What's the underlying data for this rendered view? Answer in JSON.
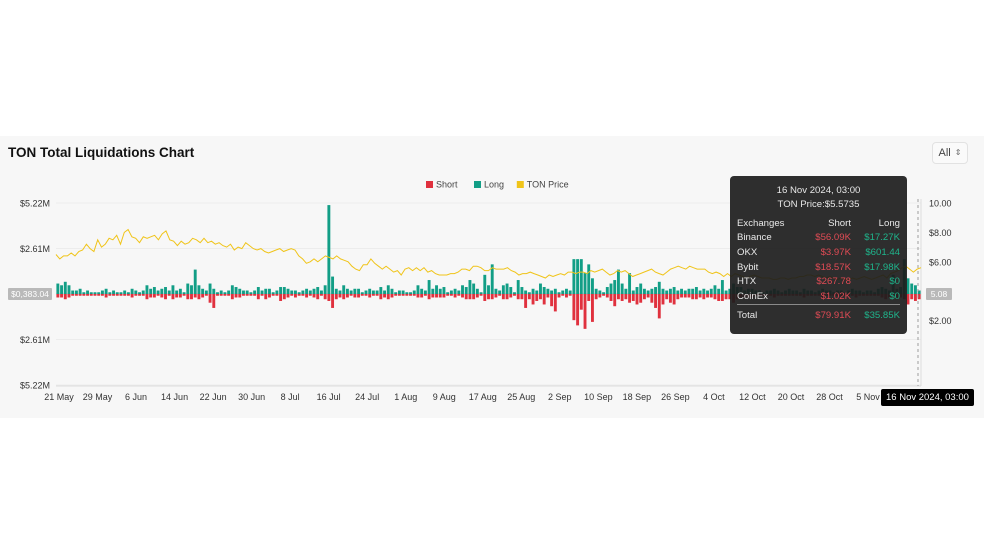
{
  "chart_title": "TON Total Liquidations Chart",
  "range_selector": {
    "value": "All"
  },
  "legend": [
    {
      "label": "Short",
      "color": "#e0313e"
    },
    {
      "label": "Long",
      "color": "#129e86"
    },
    {
      "label": "TON Price",
      "color": "#f0c419"
    }
  ],
  "chart_data": {
    "type": "bar",
    "title": "TON Total Liquidations Chart",
    "x_ticks": [
      "21 May",
      "29 May",
      "6 Jun",
      "14 Jun",
      "22 Jun",
      "30 Jun",
      "8 Jul",
      "16 Jul",
      "24 Jul",
      "1 Aug",
      "9 Aug",
      "17 Aug",
      "25 Aug",
      "2 Sep",
      "10 Sep",
      "18 Sep",
      "26 Sep",
      "4 Oct",
      "12 Oct",
      "20 Oct",
      "28 Oct",
      "5 Nov"
    ],
    "y_left_ticks": [
      "$5.22M",
      "$2.61M",
      "$0",
      "$2.61M",
      "$5.22M"
    ],
    "y_left_range": [
      -5.22,
      5.22
    ],
    "y_left_unit": "$M",
    "y_right_ticks": [
      "10.00",
      "$8.00",
      "$6.00",
      "$4.00",
      "$2.00"
    ],
    "y_right_range": [
      0,
      10
    ],
    "left_axis_marker": "$0,383.04",
    "right_axis_marker": "5.08",
    "series": [
      {
        "name": "Long",
        "color": "#129e86",
        "values": [
          0.6,
          0.5,
          0.7,
          0.5,
          0.2,
          0.2,
          0.3,
          0.1,
          0.2,
          0.1,
          0.1,
          0.1,
          0.2,
          0.3,
          0.1,
          0.2,
          0.1,
          0.1,
          0.2,
          0.1,
          0.3,
          0.2,
          0.1,
          0.2,
          0.5,
          0.3,
          0.4,
          0.2,
          0.3,
          0.4,
          0.2,
          0.5,
          0.2,
          0.3,
          0.1,
          0.6,
          0.5,
          1.4,
          0.5,
          0.3,
          0.2,
          0.6,
          0.3,
          0.1,
          0.2,
          0.1,
          0.2,
          0.5,
          0.4,
          0.3,
          0.2,
          0.2,
          0.1,
          0.2,
          0.4,
          0.2,
          0.3,
          0.3,
          0.1,
          0.2,
          0.4,
          0.4,
          0.3,
          0.2,
          0.2,
          0.1,
          0.2,
          0.3,
          0.2,
          0.3,
          0.4,
          0.2,
          0.5,
          5.1,
          1.0,
          0.3,
          0.2,
          0.5,
          0.3,
          0.2,
          0.3,
          0.3,
          0.1,
          0.2,
          0.3,
          0.2,
          0.2,
          0.4,
          0.2,
          0.5,
          0.3,
          0.1,
          0.2,
          0.2,
          0.1,
          0.1,
          0.2,
          0.5,
          0.3,
          0.2,
          0.8,
          0.3,
          0.5,
          0.3,
          0.4,
          0.1,
          0.2,
          0.3,
          0.2,
          0.5,
          0.4,
          0.8,
          0.6,
          0.3,
          0.1,
          1.1,
          0.5,
          1.7,
          0.3,
          0.2,
          0.5,
          0.6,
          0.4,
          0.1,
          0.8,
          0.4,
          0.2,
          0.1,
          0.3,
          0.2,
          0.6,
          0.4,
          0.3,
          0.2,
          0.3,
          0.1,
          0.2,
          0.3,
          0.2,
          2.0,
          2.0,
          2.0,
          1.2,
          1.7,
          0.9,
          0.3,
          0.2,
          0.1,
          0.4,
          0.6,
          0.8,
          1.4,
          0.6,
          0.3,
          1.2,
          0.2,
          0.4,
          0.6,
          0.3,
          0.2,
          0.3,
          0.4,
          0.7,
          0.3,
          0.2,
          0.3,
          0.4,
          0.2,
          0.3,
          0.2,
          0.3,
          0.3,
          0.4,
          0.2,
          0.3,
          0.2,
          0.3,
          0.5,
          0.3,
          0.8,
          0.2,
          0.3,
          0.6,
          0.4,
          0.4,
          0.2,
          0.3,
          0.3,
          0.2,
          0.2,
          0.1,
          0.2,
          0.2,
          0.3,
          0.2,
          0.1,
          0.2,
          0.3,
          0.2,
          0.2,
          0.1,
          0.3,
          0.2,
          0.2,
          0.1,
          0.2,
          0.3,
          0.2,
          0.2,
          0.1,
          0.2,
          0.2,
          0.1,
          0.2,
          0.3,
          0.2,
          0.2,
          0.1,
          0.2,
          0.2,
          0.1,
          0.3,
          0.4,
          0.3,
          0.2,
          1.1,
          0.3,
          0.4,
          2.0,
          0.9,
          0.6,
          0.5,
          0.2
        ]
      },
      {
        "name": "Short",
        "color": "#e0313e",
        "values": [
          0.2,
          0.2,
          0.3,
          0.2,
          0.1,
          0.1,
          0.1,
          0.1,
          0.1,
          0.1,
          0.1,
          0.1,
          0.1,
          0.2,
          0.1,
          0.1,
          0.1,
          0.1,
          0.1,
          0.1,
          0.2,
          0.1,
          0.1,
          0.1,
          0.3,
          0.2,
          0.2,
          0.1,
          0.2,
          0.3,
          0.1,
          0.3,
          0.2,
          0.2,
          0.1,
          0.3,
          0.3,
          0.2,
          0.3,
          0.2,
          0.1,
          0.5,
          0.8,
          0.1,
          0.1,
          0.1,
          0.1,
          0.3,
          0.2,
          0.2,
          0.1,
          0.1,
          0.1,
          0.1,
          0.3,
          0.1,
          0.3,
          0.2,
          0.1,
          0.1,
          0.4,
          0.3,
          0.2,
          0.1,
          0.2,
          0.1,
          0.1,
          0.2,
          0.1,
          0.2,
          0.3,
          0.1,
          0.3,
          0.4,
          0.8,
          0.3,
          0.2,
          0.3,
          0.2,
          0.1,
          0.2,
          0.2,
          0.1,
          0.1,
          0.2,
          0.1,
          0.1,
          0.3,
          0.2,
          0.3,
          0.2,
          0.1,
          0.1,
          0.1,
          0.1,
          0.1,
          0.1,
          0.2,
          0.2,
          0.1,
          0.3,
          0.2,
          0.2,
          0.2,
          0.2,
          0.1,
          0.1,
          0.2,
          0.1,
          0.2,
          0.3,
          0.3,
          0.3,
          0.2,
          0.1,
          0.4,
          0.3,
          0.3,
          0.2,
          0.1,
          0.3,
          0.3,
          0.2,
          0.1,
          0.3,
          0.3,
          0.8,
          0.3,
          0.6,
          0.4,
          0.3,
          0.6,
          0.2,
          0.7,
          1.0,
          0.2,
          0.1,
          0.2,
          0.1,
          1.5,
          1.8,
          0.9,
          2.0,
          0.4,
          1.6,
          0.3,
          0.2,
          0.1,
          0.2,
          0.4,
          0.7,
          0.3,
          0.4,
          0.3,
          0.5,
          0.4,
          0.6,
          0.5,
          0.3,
          0.2,
          0.5,
          0.8,
          1.4,
          0.6,
          0.3,
          0.5,
          0.6,
          0.3,
          0.2,
          0.2,
          0.2,
          0.3,
          0.3,
          0.2,
          0.3,
          0.2,
          0.2,
          0.3,
          0.4,
          0.4,
          0.3,
          0.3,
          0.5,
          0.3,
          0.2,
          0.2,
          0.2,
          0.2,
          0.1,
          0.1,
          0.1,
          0.1,
          0.1,
          0.2,
          0.1,
          0.1,
          0.1,
          0.1,
          0.1,
          0.1,
          0.1,
          0.2,
          0.1,
          0.1,
          0.1,
          0.1,
          0.2,
          0.1,
          0.1,
          0.1,
          0.1,
          0.1,
          0.1,
          0.1,
          0.1,
          0.2,
          0.1,
          0.1,
          0.1,
          0.1,
          0.1,
          0.1,
          0.2,
          0.3,
          0.2,
          0.1,
          0.3,
          0.2,
          0.3,
          0.6,
          0.3,
          0.4,
          0.3,
          0.2
        ]
      },
      {
        "name": "TON Price",
        "color": "#f0c419",
        "values": [
          6.5,
          6.2,
          6.4,
          6.4,
          6.6,
          6.4,
          6.7,
          6.8,
          7.2,
          6.9,
          6.7,
          7.5,
          7.0,
          7.2,
          7.6,
          7.5,
          7.8,
          7.2,
          8.0,
          8.2,
          7.7,
          7.6,
          7.3,
          7.7,
          7.6,
          7.7,
          7.8,
          7.5,
          7.9,
          8.1,
          7.5,
          7.4,
          7.1,
          7.4,
          7.2,
          7.3,
          7.6,
          7.5,
          7.3,
          7.6,
          7.3,
          7.4,
          7.2,
          7.3,
          7.1,
          7.0,
          7.2,
          6.8,
          7.0,
          6.9,
          7.3,
          7.1,
          6.9,
          6.8,
          6.9,
          6.7,
          6.6,
          6.7,
          6.8,
          6.9,
          6.7,
          6.8,
          6.9,
          6.8,
          6.4,
          6.2,
          5.9,
          6.0,
          6.2,
          6.0,
          6.2,
          6.4,
          6.3,
          6.2,
          6.4,
          6.2,
          6.1,
          6.0,
          5.7,
          5.5,
          5.4,
          5.8,
          5.8,
          6.2,
          5.9,
          5.7,
          5.5,
          5.7,
          5.5,
          5.3,
          5.4,
          5.1,
          5.5,
          5.6,
          5.4,
          5.6,
          5.4,
          5.6,
          5.3,
          5.4,
          5.2,
          5.1,
          5.1,
          5.1,
          5.2,
          5.2,
          5.3,
          5.5,
          5.5,
          5.4,
          5.7,
          5.7,
          5.6,
          5.4,
          5.4,
          5.6,
          5.5,
          5.5,
          5.5,
          5.6,
          5.4,
          5.3,
          5.1,
          5.2,
          5.2,
          5.3,
          5.2,
          5.1,
          5.0,
          4.9,
          5.1,
          5.0,
          5.1,
          5.2,
          5.1,
          5.3,
          5.3,
          5.2,
          5.3,
          5.3,
          5.2,
          5.4,
          5.3,
          5.4,
          5.5,
          5.3,
          5.1,
          5.2,
          5.4,
          5.3,
          5.4,
          5.2,
          5.0,
          5.1,
          5.2,
          5.3,
          5.4,
          5.5,
          5.3,
          5.2,
          5.1,
          5.3,
          5.5,
          5.6,
          5.7,
          5.6,
          5.5,
          5.7,
          5.6,
          5.5,
          5.5,
          5.5,
          5.3,
          5.2,
          5.3,
          5.2,
          5.0,
          5.2,
          5.0,
          5.2,
          5.1,
          5.0,
          4.9,
          5.0,
          5.1,
          5.0,
          4.9,
          4.9,
          4.9,
          4.8,
          4.8,
          4.9,
          4.9,
          4.8,
          4.9,
          4.9,
          5.0,
          5.0,
          5.1,
          5.1,
          5.0,
          5.1,
          5.0,
          4.9,
          5.0,
          4.9,
          4.8,
          4.9,
          4.8,
          4.8,
          4.9,
          4.8,
          4.9,
          5.0,
          4.9,
          4.8,
          4.9,
          5.0,
          5.1,
          4.9,
          5.2,
          5.3,
          5.4,
          5.6,
          5.7,
          5.5,
          5.3,
          5.5,
          5.6
        ]
      }
    ]
  },
  "tooltip": {
    "date": "16 Nov 2024, 03:00",
    "price": "TON Price:$5.5735",
    "headers": [
      "Exchanges",
      "Short",
      "Long"
    ],
    "rows": [
      {
        "exchange": "Binance",
        "short": "$56.09K",
        "long": "$17.27K"
      },
      {
        "exchange": "OKX",
        "short": "$3.97K",
        "long": "$601.44"
      },
      {
        "exchange": "Bybit",
        "short": "$18.57K",
        "long": "$17.98K"
      },
      {
        "exchange": "HTX",
        "short": "$267.78",
        "long": "$0"
      },
      {
        "exchange": "CoinEx",
        "short": "$1.02K",
        "long": "$0"
      }
    ],
    "total": {
      "label": "Total",
      "short": "$79.91K",
      "long": "$35.85K"
    }
  },
  "crosshair_label": "16 Nov 2024, 03:00"
}
